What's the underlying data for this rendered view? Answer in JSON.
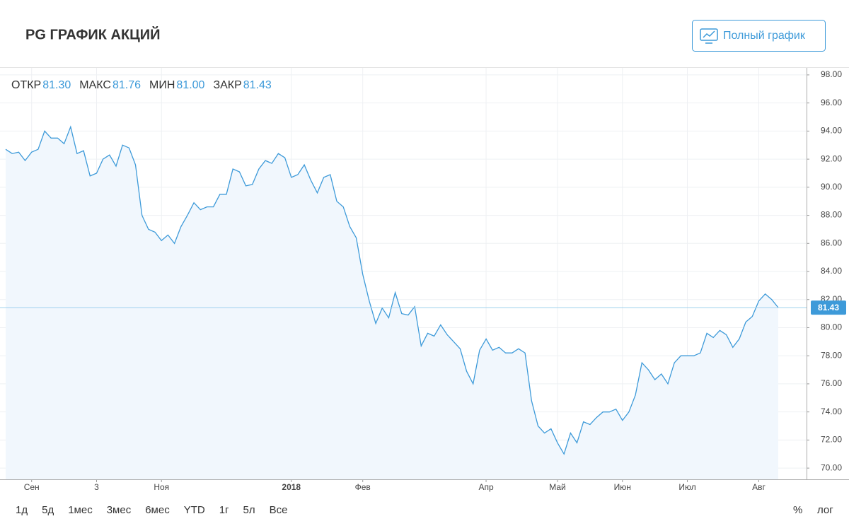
{
  "header": {
    "title": "PG ГРАФИК АКЦИЙ",
    "button": "Полный график"
  },
  "chart_data": {
    "type": "line",
    "color": "#3d9ad9",
    "area_color": "#f1f7fd",
    "ohlc": [
      {
        "name": "ОТКР",
        "value": 81.3,
        "value_label": "81.30"
      },
      {
        "name": "МАКС",
        "value": 81.76,
        "value_label": "81.76"
      },
      {
        "name": "МИН",
        "value": 81.0,
        "value_label": "81.00"
      },
      {
        "name": "ЗАКР",
        "value": 81.43,
        "value_label": "81.43"
      }
    ],
    "categories": [
      null,
      null,
      null,
      null,
      "Сен",
      null,
      null,
      null,
      null,
      null,
      null,
      null,
      null,
      null,
      "3",
      null,
      null,
      null,
      null,
      null,
      null,
      null,
      null,
      null,
      "Ноя",
      null,
      null,
      null,
      null,
      null,
      null,
      null,
      null,
      null,
      null,
      null,
      null,
      null,
      null,
      null,
      null,
      null,
      null,
      null,
      "2018",
      null,
      null,
      null,
      null,
      null,
      null,
      null,
      null,
      null,
      null,
      "Фев",
      null,
      null,
      null,
      null,
      null,
      null,
      null,
      null,
      null,
      null,
      null,
      null,
      null,
      null,
      null,
      null,
      null,
      null,
      "Апр",
      null,
      null,
      null,
      null,
      null,
      null,
      null,
      null,
      null,
      null,
      "Май",
      null,
      null,
      null,
      null,
      null,
      null,
      null,
      null,
      null,
      "Июн",
      null,
      null,
      null,
      null,
      null,
      null,
      null,
      null,
      null,
      "Июл",
      null,
      null,
      null,
      null,
      null,
      null,
      null,
      null,
      null,
      null,
      "Авг",
      null,
      null,
      null
    ],
    "values": [
      92.7,
      92.4,
      92.5,
      91.9,
      92.5,
      92.7,
      94.0,
      93.5,
      93.5,
      93.1,
      94.3,
      92.4,
      92.6,
      90.8,
      91.0,
      92.0,
      92.3,
      91.5,
      93.0,
      92.8,
      91.6,
      88.0,
      87.0,
      86.8,
      86.2,
      86.6,
      86.0,
      87.2,
      88.0,
      88.9,
      88.4,
      88.6,
      88.6,
      89.5,
      89.5,
      91.3,
      91.1,
      90.1,
      90.2,
      91.3,
      91.9,
      91.7,
      92.4,
      92.1,
      90.7,
      90.9,
      91.6,
      90.5,
      89.6,
      90.7,
      90.9,
      89.0,
      88.6,
      87.2,
      86.4,
      83.8,
      81.9,
      80.3,
      81.4,
      80.7,
      82.5,
      81.0,
      80.9,
      81.5,
      78.7,
      79.6,
      79.4,
      80.2,
      79.5,
      79.0,
      78.5,
      76.9,
      76.0,
      78.4,
      79.2,
      78.4,
      78.6,
      78.2,
      78.2,
      78.5,
      78.2,
      74.8,
      73.0,
      72.5,
      72.8,
      71.8,
      71.0,
      72.5,
      71.8,
      73.3,
      73.1,
      73.6,
      74.0,
      74.0,
      74.2,
      73.4,
      74.0,
      75.2,
      77.5,
      77.0,
      76.3,
      76.7,
      76.0,
      77.5,
      78.0,
      78.0,
      78.0,
      78.2,
      79.6,
      79.3,
      79.8,
      79.5,
      78.6,
      79.2,
      80.4,
      80.8,
      81.9,
      82.4,
      82.0,
      81.43
    ],
    "ylim": [
      69.2,
      98.5
    ],
    "yticks": [
      {
        "value": 70,
        "label": "70.00"
      },
      {
        "value": 72,
        "label": "72.00"
      },
      {
        "value": 74,
        "label": "74.00"
      },
      {
        "value": 76,
        "label": "76.00"
      },
      {
        "value": 78,
        "label": "78.00"
      },
      {
        "value": 80,
        "label": "80.00"
      },
      {
        "value": 82,
        "label": "82.00"
      },
      {
        "value": 84,
        "label": "84.00"
      },
      {
        "value": 86,
        "label": "86.00"
      },
      {
        "value": 88,
        "label": "88.00"
      },
      {
        "value": 90,
        "label": "90.00"
      },
      {
        "value": 92,
        "label": "92.00"
      },
      {
        "value": 94,
        "label": "94.00"
      },
      {
        "value": 96,
        "label": "96.00"
      },
      {
        "value": 98,
        "label": "98.00"
      }
    ],
    "grid": true
  },
  "ranges": [
    "1д",
    "5д",
    "1мес",
    "3мес",
    "6мес",
    "YTD",
    "1г",
    "5л",
    "Все"
  ],
  "scale_options": [
    "%",
    "лог"
  ]
}
